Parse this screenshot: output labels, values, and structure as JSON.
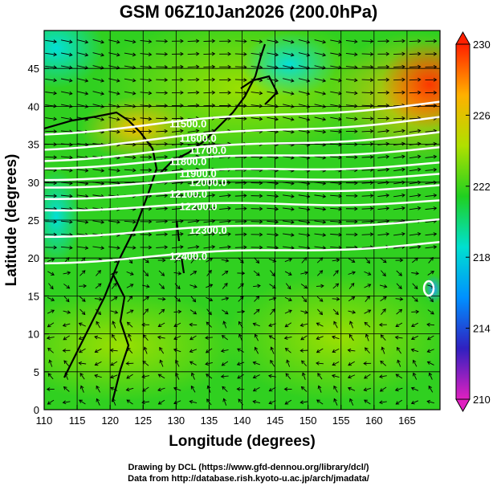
{
  "title": "GSM 06Z10Jan2026 (200.0hPa)",
  "xaxis": {
    "label": "Longitude (degrees)",
    "range": [
      110,
      170
    ],
    "ticks": [
      "110",
      "115",
      "120",
      "125",
      "130",
      "135",
      "140",
      "145",
      "150",
      "155",
      "160",
      "165"
    ]
  },
  "yaxis": {
    "label": "Latitude  (degrees)",
    "range": [
      0,
      50
    ],
    "ticks": [
      "0",
      "5",
      "10",
      "15",
      "20",
      "25",
      "30",
      "35",
      "40",
      "45"
    ]
  },
  "colorbar": {
    "range": [
      210,
      230
    ],
    "ticks": [
      "210",
      "214",
      "218",
      "222",
      "226",
      "230"
    ],
    "colors": [
      "#e020c0",
      "#3020c0",
      "#0090ff",
      "#00e0d0",
      "#20d020",
      "#b0e000",
      "#ffb000",
      "#ff2000"
    ]
  },
  "contours": {
    "color": "#ffffff",
    "levels": [
      {
        "value": "11500.0",
        "lat_west": 36.5,
        "lat_east": 40.5
      },
      {
        "value": "11600.0",
        "lat_west": 34.5,
        "lat_east": 38.5
      },
      {
        "value": "11700.0",
        "lat_west": 33.0,
        "lat_east": 36.5
      },
      {
        "value": "11800.0",
        "lat_west": 32.0,
        "lat_east": 34.5
      },
      {
        "value": "11900.0",
        "lat_west": 30.5,
        "lat_east": 32.5
      },
      {
        "value": "12000.0",
        "lat_west": 29.5,
        "lat_east": 31.0
      },
      {
        "value": "12100.0",
        "lat_west": 28.0,
        "lat_east": 29.5
      },
      {
        "value": "12200.0",
        "lat_west": 26.5,
        "lat_east": 27.5
      },
      {
        "value": "12300.0",
        "lat_west": 23.0,
        "lat_east": 25.0
      },
      {
        "value": "12400.0",
        "lat_west": 19.5,
        "lat_east": 22.0
      }
    ]
  },
  "credits": [
    "Drawing by DCL (https://www.gfd-dennou.org/library/dcl/)",
    "Data from http://database.rish.kyoto-u.ac.jp/arch/jmadata/"
  ]
}
